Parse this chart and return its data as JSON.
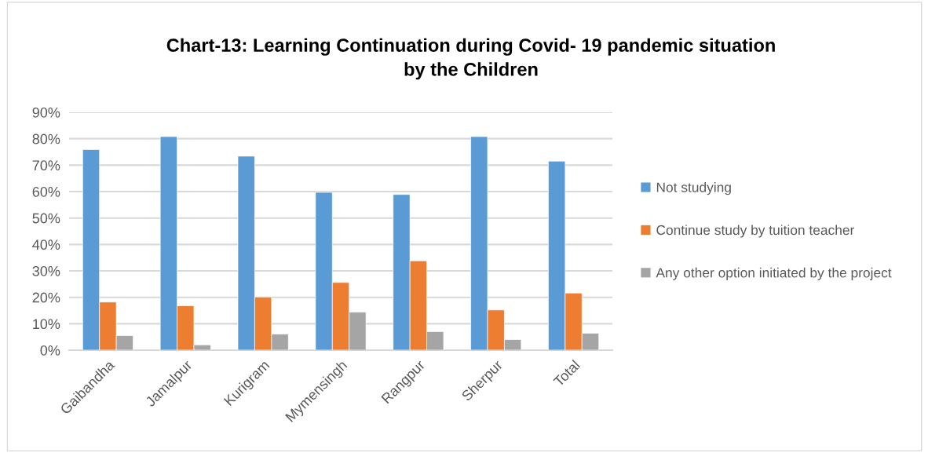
{
  "chart_data": {
    "type": "bar",
    "title": "Chart-13: Learning Continuation during Covid- 19 pandemic situation\nby the Children",
    "categories": [
      "Gaibandha",
      "Jamalpur",
      "Kurigram",
      "Mymensingh",
      "Rangpur",
      "Sherpur",
      "Total"
    ],
    "series": [
      {
        "name": "Not studying",
        "color": "#5b9bd5",
        "values": [
          75.9,
          80.8,
          73.4,
          59.7,
          58.9,
          80.8,
          71.5
        ]
      },
      {
        "name": "Continue study by tuition teacher",
        "color": "#ed7d31",
        "values": [
          18.2,
          16.8,
          20.1,
          25.6,
          33.8,
          15.2,
          21.6
        ]
      },
      {
        "name": "Any other option initiated by the project",
        "color": "#a5a5a5",
        "values": [
          5.5,
          2.0,
          6.1,
          14.4,
          7.0,
          4.0,
          6.4
        ]
      }
    ],
    "ylim": [
      0,
      90
    ],
    "yticks": [
      {
        "value": 0,
        "label": "0%"
      },
      {
        "value": 10,
        "label": "10%"
      },
      {
        "value": 20,
        "label": "20%"
      },
      {
        "value": 30,
        "label": "30%"
      },
      {
        "value": 40,
        "label": "40%"
      },
      {
        "value": 50,
        "label": "50%"
      },
      {
        "value": 60,
        "label": "60%"
      },
      {
        "value": 70,
        "label": "70%"
      },
      {
        "value": 80,
        "label": "80%"
      },
      {
        "value": 90,
        "label": "90%"
      }
    ],
    "grid": "y",
    "legend": "right"
  }
}
